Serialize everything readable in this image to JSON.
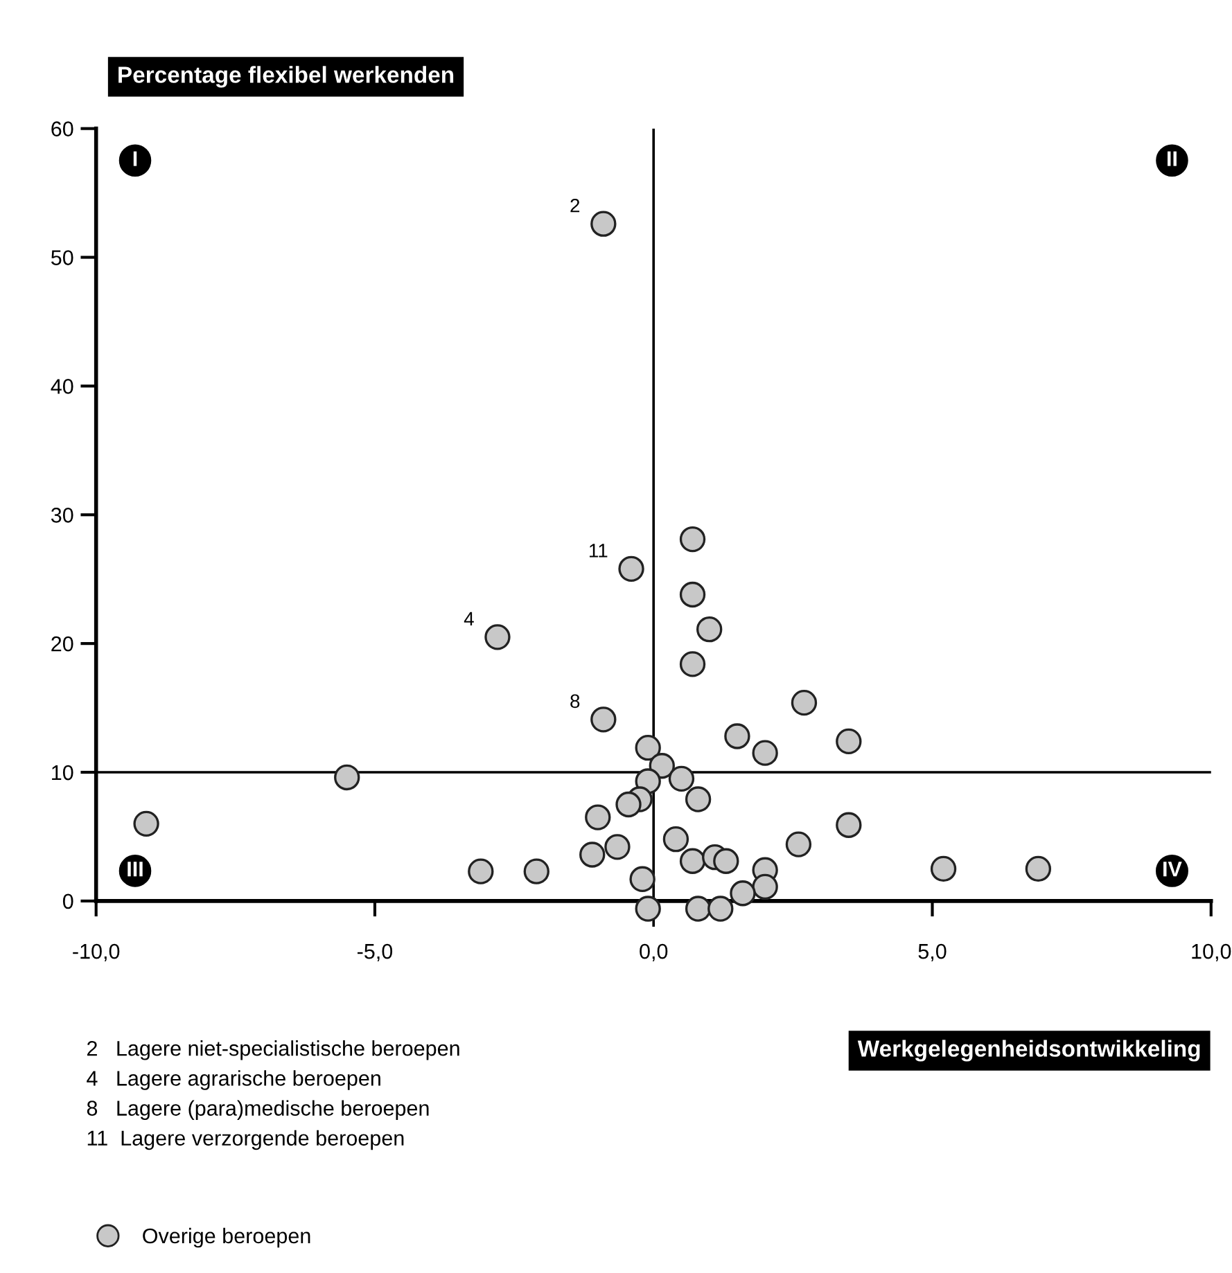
{
  "chart_data": {
    "type": "scatter",
    "ylabel": "Percentage flexibel werkenden",
    "xlabel": "Werkgelegenheidsontwikkeling",
    "xlim": [
      -10,
      10
    ],
    "xticks": [
      {
        "value": -10,
        "label": "-10,0"
      },
      {
        "value": -5,
        "label": "-5,0"
      },
      {
        "value": 0,
        "label": "0,0"
      },
      {
        "value": 5,
        "label": "5,0"
      },
      {
        "value": 10,
        "label": "10,0"
      }
    ],
    "ylim": [
      -2,
      60
    ],
    "yticks": [
      0,
      10,
      20,
      30,
      40,
      50,
      60
    ],
    "grid": false,
    "legend": "bottom left",
    "marker": "circle",
    "series": [
      {
        "name": "Overige beroepen",
        "color": "#c8c8c8",
        "x": [
          -0.9,
          -0.4,
          -2.8,
          -0.9,
          0.7,
          0.7,
          1.0,
          0.7,
          2.7,
          1.5,
          3.5,
          2.0,
          -0.1,
          0.15,
          0.5,
          -0.1,
          -0.25,
          -0.45,
          0.8,
          -1.0,
          3.5,
          0.4,
          -0.65,
          -1.1,
          2.6,
          0.7,
          1.1,
          1.3,
          -3.1,
          -2.1,
          2.0,
          2.0,
          1.6,
          -0.2,
          -0.1,
          0.8,
          1.2,
          -5.5,
          -9.1,
          5.2,
          6.9
        ],
        "values": [
          52.6,
          25.8,
          20.5,
          14.1,
          28.1,
          23.8,
          21.1,
          18.4,
          15.4,
          12.8,
          12.4,
          11.5,
          11.9,
          10.5,
          9.5,
          9.3,
          7.9,
          7.5,
          7.9,
          6.5,
          5.9,
          4.8,
          4.2,
          3.6,
          4.4,
          3.1,
          3.4,
          3.1,
          2.3,
          2.3,
          2.4,
          1.1,
          0.6,
          1.7,
          -0.6,
          -0.6,
          -0.6,
          9.6,
          6.0,
          2.5,
          2.5
        ]
      }
    ],
    "ref_lines": [
      {
        "axis": "x",
        "value": 0
      },
      {
        "axis": "y",
        "value": 10
      }
    ],
    "annotations": [
      {
        "text": "2",
        "x": -0.9,
        "y": 52.6
      },
      {
        "text": "11",
        "x": -0.4,
        "y": 25.8
      },
      {
        "text": "4",
        "x": -2.8,
        "y": 20.5
      },
      {
        "text": "8",
        "x": -0.9,
        "y": 14.1
      },
      "I",
      "II",
      "III",
      "IV",
      "2   Lagere niet-specialistische beroepen",
      "4   Lagere agrarische beroepen",
      "8   Lagere (para)medische beroepen",
      "11  Lagere verzorgende beroepen"
    ]
  }
}
